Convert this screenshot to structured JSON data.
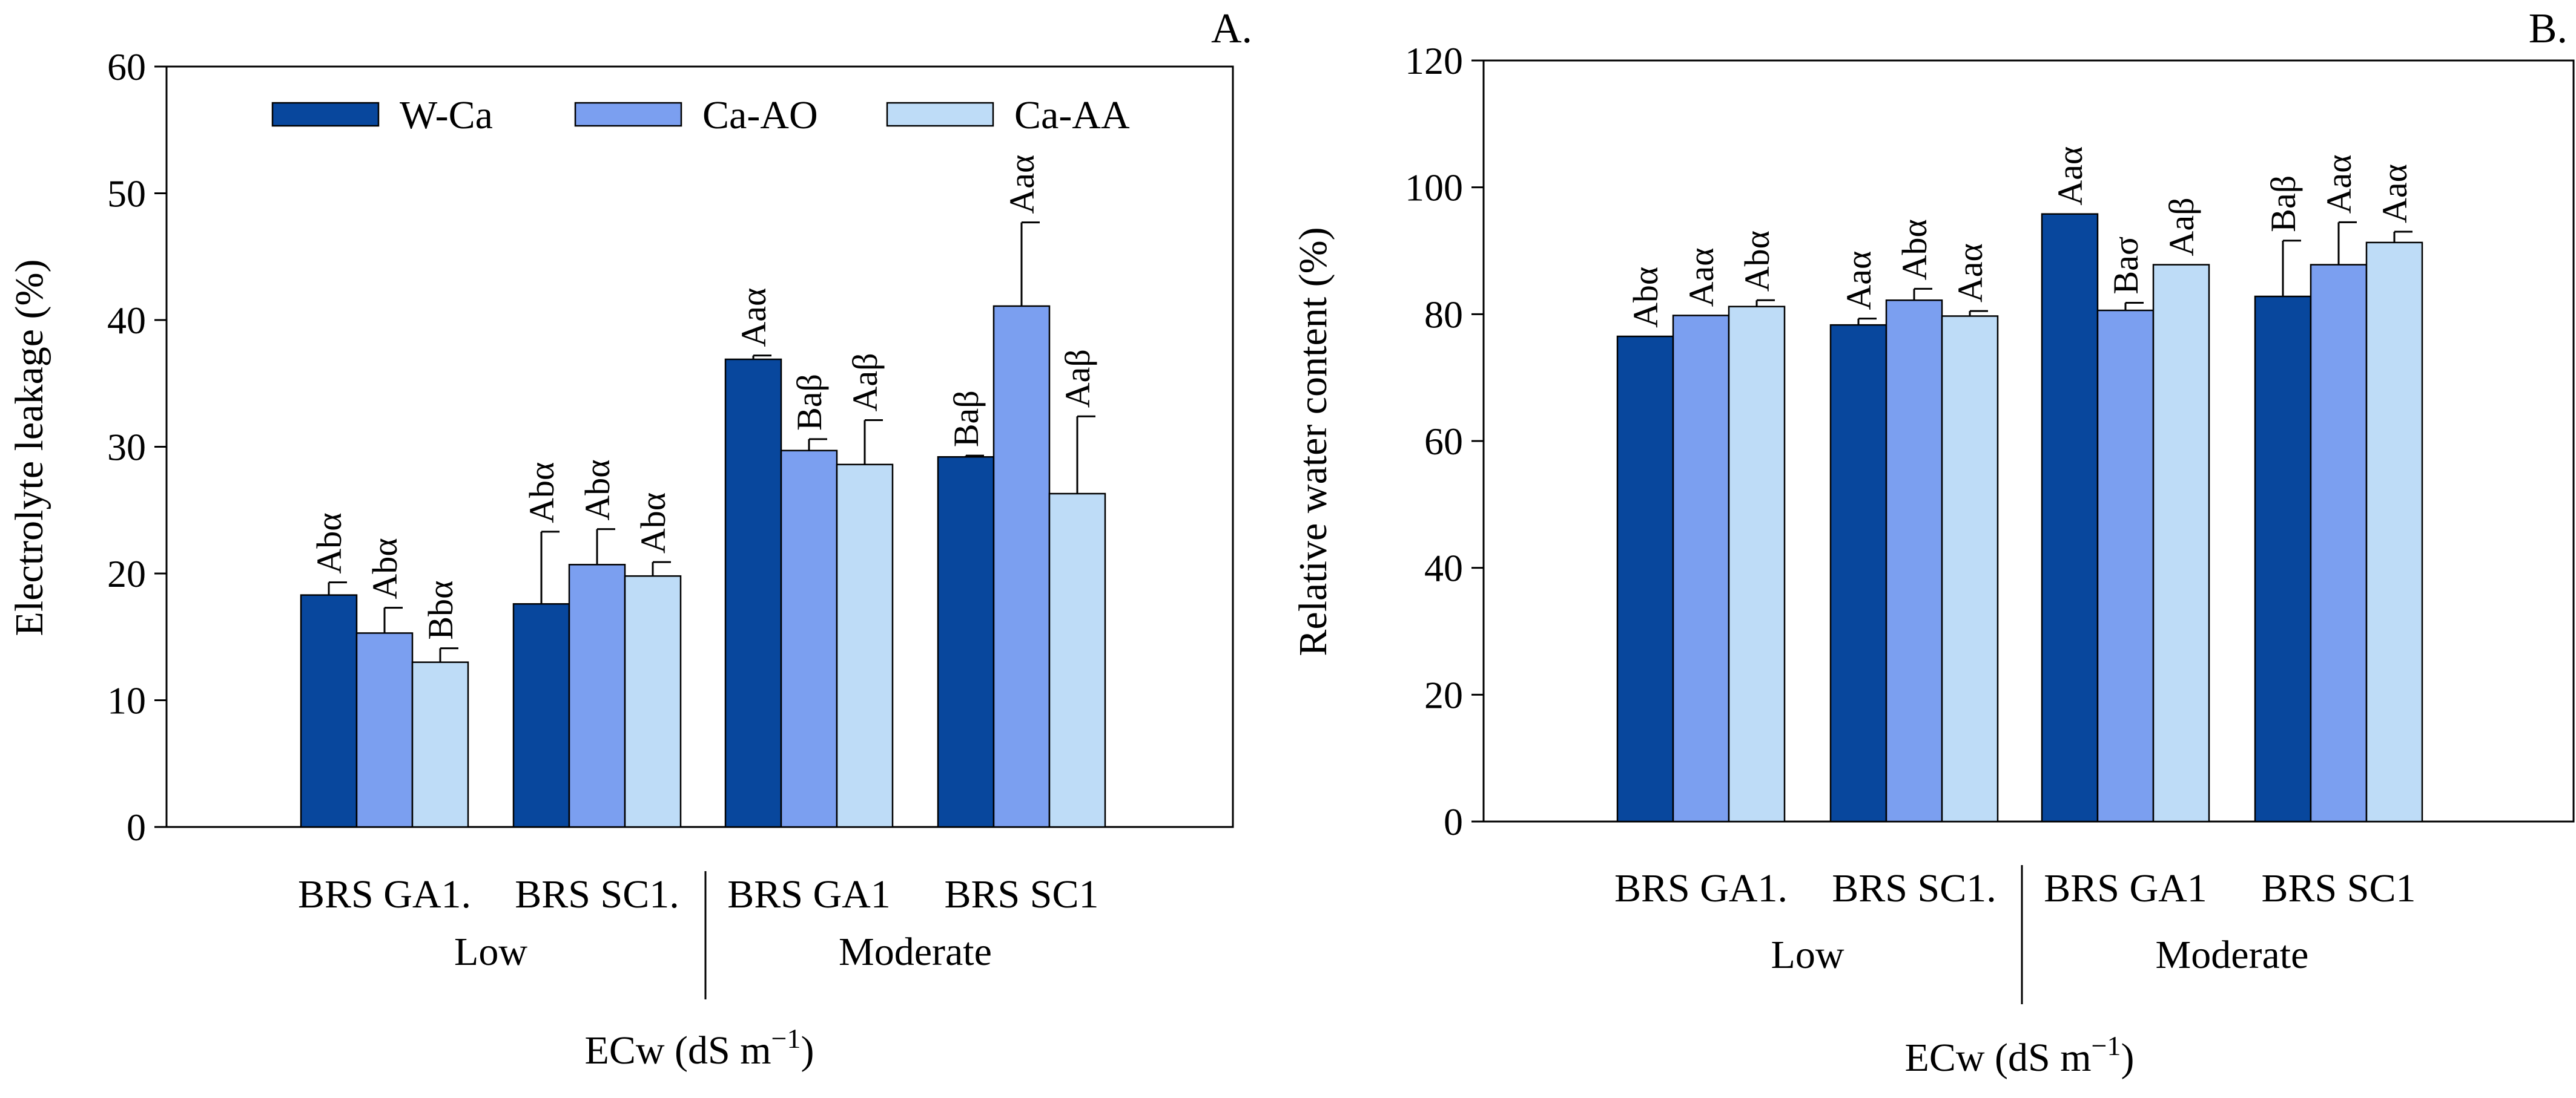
{
  "chart_data": [
    {
      "panel": "A.",
      "type": "bar",
      "ylabel": "Electrolyte leakage (%)",
      "xlabel": "ECw (dS m",
      "xlabel_sup": "−1",
      "xlabel_close": ")",
      "ylim": [
        0,
        60
      ],
      "yticks": [
        0,
        10,
        20,
        30,
        40,
        50,
        60
      ],
      "legend_position": "top",
      "groups": [
        {
          "name": "Low",
          "categories": [
            "BRS GA1.",
            "BRS SC1."
          ]
        },
        {
          "name": "Moderate",
          "categories": [
            "BRS GA1",
            "BRS SC1"
          ]
        }
      ],
      "series": [
        {
          "name": "W-Ca",
          "color": "#08479d",
          "values": [
            18.3,
            17.6,
            36.9,
            29.2
          ],
          "errors": [
            1.0,
            5.7,
            0.3,
            0.1
          ],
          "labels": [
            "Abα",
            "Abα",
            "Aaα",
            "Baβ"
          ]
        },
        {
          "name": "Ca-AO",
          "color": "#7b9ff0",
          "values": [
            15.3,
            20.7,
            29.7,
            41.1
          ],
          "errors": [
            2.0,
            2.8,
            0.9,
            6.6
          ],
          "labels": [
            "Abα",
            "Abα",
            "Baβ",
            "Aaα"
          ]
        },
        {
          "name": "Ca-AA",
          "color": "#bedcf7",
          "values": [
            13.0,
            19.8,
            28.6,
            26.3
          ],
          "errors": [
            1.1,
            1.1,
            3.5,
            6.1
          ],
          "labels": [
            "Bbα",
            "Abα",
            "Aaβ",
            "Aaβ"
          ]
        }
      ]
    },
    {
      "panel": "B.",
      "type": "bar",
      "ylabel": "Relative water content (%)",
      "xlabel": "ECw (dS m",
      "xlabel_sup": "−1",
      "xlabel_close": ")",
      "ylim": [
        0,
        120
      ],
      "yticks": [
        0,
        20,
        40,
        60,
        80,
        100,
        120
      ],
      "groups": [
        {
          "name": "Low",
          "categories": [
            "BRS GA1.",
            "BRS SC1."
          ]
        },
        {
          "name": "Moderate",
          "categories": [
            "BRS GA1",
            "BRS SC1"
          ]
        }
      ],
      "series": [
        {
          "name": "W-Ca",
          "color": "#08479d",
          "values": [
            76.5,
            78.3,
            95.8,
            82.8
          ],
          "errors": [
            0,
            1.0,
            0,
            8.8
          ],
          "labels": [
            "Abα",
            "Aaα",
            "Aaα",
            "Baβ"
          ]
        },
        {
          "name": "Ca-AO",
          "color": "#7b9ff0",
          "values": [
            79.8,
            82.2,
            80.6,
            87.8
          ],
          "errors": [
            0,
            1.8,
            1.2,
            6.7
          ],
          "labels": [
            "Aaα",
            "Abα",
            "Baσ",
            "Aaα"
          ]
        },
        {
          "name": "Ca-AA",
          "color": "#bedcf7",
          "values": [
            81.2,
            79.7,
            87.8,
            91.3
          ],
          "errors": [
            1.0,
            0.8,
            0,
            1.7
          ],
          "labels": [
            "Abα",
            "Aaα",
            "Aaβ",
            "Aaα"
          ]
        }
      ]
    }
  ]
}
